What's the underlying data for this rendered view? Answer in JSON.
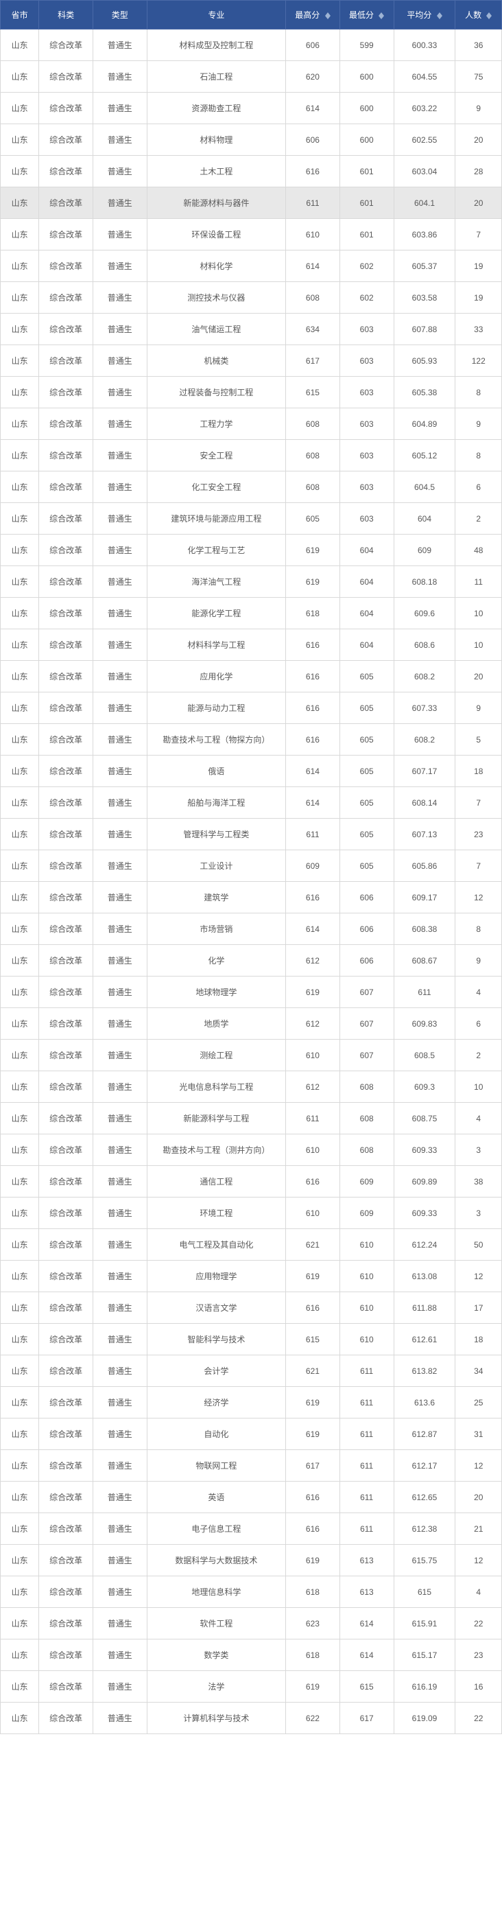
{
  "header": {
    "province": "省市",
    "subject": "科类",
    "type": "类型",
    "major": "专业",
    "max_score": "最高分",
    "min_score": "最低分",
    "avg_score": "平均分",
    "count": "人数"
  },
  "colors": {
    "header_bg": "#305496",
    "header_text": "#ffffff",
    "border": "#d9d9d9",
    "cell_text": "#595959",
    "highlight_bg": "#e8e8e8"
  },
  "highlighted_row_index": 5,
  "rows": [
    {
      "province": "山东",
      "subject": "综合改革",
      "type": "普通生",
      "major": "材料成型及控制工程",
      "max": "606",
      "min": "599",
      "avg": "600.33",
      "count": "36"
    },
    {
      "province": "山东",
      "subject": "综合改革",
      "type": "普通生",
      "major": "石油工程",
      "max": "620",
      "min": "600",
      "avg": "604.55",
      "count": "75"
    },
    {
      "province": "山东",
      "subject": "综合改革",
      "type": "普通生",
      "major": "资源勘查工程",
      "max": "614",
      "min": "600",
      "avg": "603.22",
      "count": "9"
    },
    {
      "province": "山东",
      "subject": "综合改革",
      "type": "普通生",
      "major": "材料物理",
      "max": "606",
      "min": "600",
      "avg": "602.55",
      "count": "20"
    },
    {
      "province": "山东",
      "subject": "综合改革",
      "type": "普通生",
      "major": "土木工程",
      "max": "616",
      "min": "601",
      "avg": "603.04",
      "count": "28"
    },
    {
      "province": "山东",
      "subject": "综合改革",
      "type": "普通生",
      "major": "新能源材料与器件",
      "max": "611",
      "min": "601",
      "avg": "604.1",
      "count": "20"
    },
    {
      "province": "山东",
      "subject": "综合改革",
      "type": "普通生",
      "major": "环保设备工程",
      "max": "610",
      "min": "601",
      "avg": "603.86",
      "count": "7"
    },
    {
      "province": "山东",
      "subject": "综合改革",
      "type": "普通生",
      "major": "材料化学",
      "max": "614",
      "min": "602",
      "avg": "605.37",
      "count": "19"
    },
    {
      "province": "山东",
      "subject": "综合改革",
      "type": "普通生",
      "major": "测控技术与仪器",
      "max": "608",
      "min": "602",
      "avg": "603.58",
      "count": "19"
    },
    {
      "province": "山东",
      "subject": "综合改革",
      "type": "普通生",
      "major": "油气储运工程",
      "max": "634",
      "min": "603",
      "avg": "607.88",
      "count": "33"
    },
    {
      "province": "山东",
      "subject": "综合改革",
      "type": "普通生",
      "major": "机械类",
      "max": "617",
      "min": "603",
      "avg": "605.93",
      "count": "122"
    },
    {
      "province": "山东",
      "subject": "综合改革",
      "type": "普通生",
      "major": "过程装备与控制工程",
      "max": "615",
      "min": "603",
      "avg": "605.38",
      "count": "8"
    },
    {
      "province": "山东",
      "subject": "综合改革",
      "type": "普通生",
      "major": "工程力学",
      "max": "608",
      "min": "603",
      "avg": "604.89",
      "count": "9"
    },
    {
      "province": "山东",
      "subject": "综合改革",
      "type": "普通生",
      "major": "安全工程",
      "max": "608",
      "min": "603",
      "avg": "605.12",
      "count": "8"
    },
    {
      "province": "山东",
      "subject": "综合改革",
      "type": "普通生",
      "major": "化工安全工程",
      "max": "608",
      "min": "603",
      "avg": "604.5",
      "count": "6"
    },
    {
      "province": "山东",
      "subject": "综合改革",
      "type": "普通生",
      "major": "建筑环境与能源应用工程",
      "max": "605",
      "min": "603",
      "avg": "604",
      "count": "2"
    },
    {
      "province": "山东",
      "subject": "综合改革",
      "type": "普通生",
      "major": "化学工程与工艺",
      "max": "619",
      "min": "604",
      "avg": "609",
      "count": "48"
    },
    {
      "province": "山东",
      "subject": "综合改革",
      "type": "普通生",
      "major": "海洋油气工程",
      "max": "619",
      "min": "604",
      "avg": "608.18",
      "count": "11"
    },
    {
      "province": "山东",
      "subject": "综合改革",
      "type": "普通生",
      "major": "能源化学工程",
      "max": "618",
      "min": "604",
      "avg": "609.6",
      "count": "10"
    },
    {
      "province": "山东",
      "subject": "综合改革",
      "type": "普通生",
      "major": "材料科学与工程",
      "max": "616",
      "min": "604",
      "avg": "608.6",
      "count": "10"
    },
    {
      "province": "山东",
      "subject": "综合改革",
      "type": "普通生",
      "major": "应用化学",
      "max": "616",
      "min": "605",
      "avg": "608.2",
      "count": "20"
    },
    {
      "province": "山东",
      "subject": "综合改革",
      "type": "普通生",
      "major": "能源与动力工程",
      "max": "616",
      "min": "605",
      "avg": "607.33",
      "count": "9"
    },
    {
      "province": "山东",
      "subject": "综合改革",
      "type": "普通生",
      "major": "勘查技术与工程（物探方向）",
      "max": "616",
      "min": "605",
      "avg": "608.2",
      "count": "5"
    },
    {
      "province": "山东",
      "subject": "综合改革",
      "type": "普通生",
      "major": "俄语",
      "max": "614",
      "min": "605",
      "avg": "607.17",
      "count": "18"
    },
    {
      "province": "山东",
      "subject": "综合改革",
      "type": "普通生",
      "major": "船舶与海洋工程",
      "max": "614",
      "min": "605",
      "avg": "608.14",
      "count": "7"
    },
    {
      "province": "山东",
      "subject": "综合改革",
      "type": "普通生",
      "major": "管理科学与工程类",
      "max": "611",
      "min": "605",
      "avg": "607.13",
      "count": "23"
    },
    {
      "province": "山东",
      "subject": "综合改革",
      "type": "普通生",
      "major": "工业设计",
      "max": "609",
      "min": "605",
      "avg": "605.86",
      "count": "7"
    },
    {
      "province": "山东",
      "subject": "综合改革",
      "type": "普通生",
      "major": "建筑学",
      "max": "616",
      "min": "606",
      "avg": "609.17",
      "count": "12"
    },
    {
      "province": "山东",
      "subject": "综合改革",
      "type": "普通生",
      "major": "市场营销",
      "max": "614",
      "min": "606",
      "avg": "608.38",
      "count": "8"
    },
    {
      "province": "山东",
      "subject": "综合改革",
      "type": "普通生",
      "major": "化学",
      "max": "612",
      "min": "606",
      "avg": "608.67",
      "count": "9"
    },
    {
      "province": "山东",
      "subject": "综合改革",
      "type": "普通生",
      "major": "地球物理学",
      "max": "619",
      "min": "607",
      "avg": "611",
      "count": "4"
    },
    {
      "province": "山东",
      "subject": "综合改革",
      "type": "普通生",
      "major": "地质学",
      "max": "612",
      "min": "607",
      "avg": "609.83",
      "count": "6"
    },
    {
      "province": "山东",
      "subject": "综合改革",
      "type": "普通生",
      "major": "测绘工程",
      "max": "610",
      "min": "607",
      "avg": "608.5",
      "count": "2"
    },
    {
      "province": "山东",
      "subject": "综合改革",
      "type": "普通生",
      "major": "光电信息科学与工程",
      "max": "612",
      "min": "608",
      "avg": "609.3",
      "count": "10"
    },
    {
      "province": "山东",
      "subject": "综合改革",
      "type": "普通生",
      "major": "新能源科学与工程",
      "max": "611",
      "min": "608",
      "avg": "608.75",
      "count": "4"
    },
    {
      "province": "山东",
      "subject": "综合改革",
      "type": "普通生",
      "major": "勘查技术与工程（测井方向）",
      "max": "610",
      "min": "608",
      "avg": "609.33",
      "count": "3"
    },
    {
      "province": "山东",
      "subject": "综合改革",
      "type": "普通生",
      "major": "通信工程",
      "max": "616",
      "min": "609",
      "avg": "609.89",
      "count": "38"
    },
    {
      "province": "山东",
      "subject": "综合改革",
      "type": "普通生",
      "major": "环境工程",
      "max": "610",
      "min": "609",
      "avg": "609.33",
      "count": "3"
    },
    {
      "province": "山东",
      "subject": "综合改革",
      "type": "普通生",
      "major": "电气工程及其自动化",
      "max": "621",
      "min": "610",
      "avg": "612.24",
      "count": "50"
    },
    {
      "province": "山东",
      "subject": "综合改革",
      "type": "普通生",
      "major": "应用物理学",
      "max": "619",
      "min": "610",
      "avg": "613.08",
      "count": "12"
    },
    {
      "province": "山东",
      "subject": "综合改革",
      "type": "普通生",
      "major": "汉语言文学",
      "max": "616",
      "min": "610",
      "avg": "611.88",
      "count": "17"
    },
    {
      "province": "山东",
      "subject": "综合改革",
      "type": "普通生",
      "major": "智能科学与技术",
      "max": "615",
      "min": "610",
      "avg": "612.61",
      "count": "18"
    },
    {
      "province": "山东",
      "subject": "综合改革",
      "type": "普通生",
      "major": "会计学",
      "max": "621",
      "min": "611",
      "avg": "613.82",
      "count": "34"
    },
    {
      "province": "山东",
      "subject": "综合改革",
      "type": "普通生",
      "major": "经济学",
      "max": "619",
      "min": "611",
      "avg": "613.6",
      "count": "25"
    },
    {
      "province": "山东",
      "subject": "综合改革",
      "type": "普通生",
      "major": "自动化",
      "max": "619",
      "min": "611",
      "avg": "612.87",
      "count": "31"
    },
    {
      "province": "山东",
      "subject": "综合改革",
      "type": "普通生",
      "major": "物联网工程",
      "max": "617",
      "min": "611",
      "avg": "612.17",
      "count": "12"
    },
    {
      "province": "山东",
      "subject": "综合改革",
      "type": "普通生",
      "major": "英语",
      "max": "616",
      "min": "611",
      "avg": "612.65",
      "count": "20"
    },
    {
      "province": "山东",
      "subject": "综合改革",
      "type": "普通生",
      "major": "电子信息工程",
      "max": "616",
      "min": "611",
      "avg": "612.38",
      "count": "21"
    },
    {
      "province": "山东",
      "subject": "综合改革",
      "type": "普通生",
      "major": "数据科学与大数据技术",
      "max": "619",
      "min": "613",
      "avg": "615.75",
      "count": "12"
    },
    {
      "province": "山东",
      "subject": "综合改革",
      "type": "普通生",
      "major": "地理信息科学",
      "max": "618",
      "min": "613",
      "avg": "615",
      "count": "4"
    },
    {
      "province": "山东",
      "subject": "综合改革",
      "type": "普通生",
      "major": "软件工程",
      "max": "623",
      "min": "614",
      "avg": "615.91",
      "count": "22"
    },
    {
      "province": "山东",
      "subject": "综合改革",
      "type": "普通生",
      "major": "数学类",
      "max": "618",
      "min": "614",
      "avg": "615.17",
      "count": "23"
    },
    {
      "province": "山东",
      "subject": "综合改革",
      "type": "普通生",
      "major": "法学",
      "max": "619",
      "min": "615",
      "avg": "616.19",
      "count": "16"
    },
    {
      "province": "山东",
      "subject": "综合改革",
      "type": "普通生",
      "major": "计算机科学与技术",
      "max": "622",
      "min": "617",
      "avg": "619.09",
      "count": "22"
    }
  ]
}
